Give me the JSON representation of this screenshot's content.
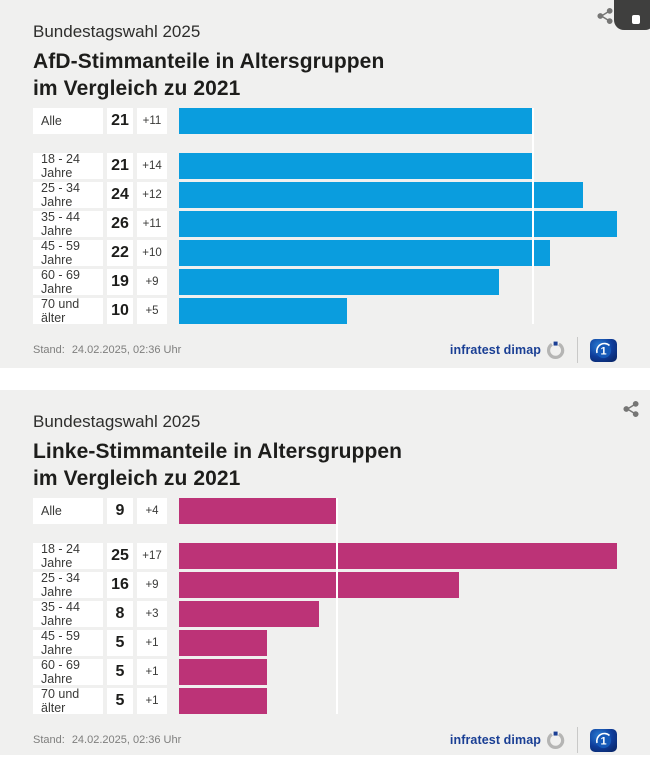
{
  "shared": {
    "stand_label": "Stand:",
    "stand_value": "24.02.2025, 02:36 Uhr",
    "source_label": "infratest dimap",
    "ard_logo_text": "1",
    "icons": {
      "share": "share-icon",
      "source_logo": "infratest-dimap-ring-icon",
      "broadcaster_logo": "ard-one-logo"
    }
  },
  "charts": [
    {
      "kicker": "Bundestagswahl 2025",
      "title_line1": "AfD-Stimmanteile in Altersgruppen",
      "title_line2": "im Vergleich zu 2021",
      "bar_color": "#0a9dde",
      "axis_max": 26,
      "reference_value": 21,
      "rows": [
        {
          "label": "Alle",
          "value": "21",
          "value_num": 21,
          "change": "+11"
        },
        {
          "label": "18 - 24 Jahre",
          "value": "21",
          "value_num": 21,
          "change": "+14"
        },
        {
          "label": "25 - 34 Jahre",
          "value": "24",
          "value_num": 24,
          "change": "+12"
        },
        {
          "label": "35 - 44 Jahre",
          "value": "26",
          "value_num": 26,
          "change": "+11"
        },
        {
          "label": "45 - 59 Jahre",
          "value": "22",
          "value_num": 22,
          "change": "+10"
        },
        {
          "label": "60 - 69 Jahre",
          "value": "19",
          "value_num": 19,
          "change": "+9"
        },
        {
          "label": "70 und älter",
          "value": "10",
          "value_num": 10,
          "change": "+5"
        }
      ]
    },
    {
      "kicker": "Bundestagswahl 2025",
      "title_line1": "Linke-Stimmanteile in Altersgruppen",
      "title_line2": "im Vergleich zu 2021",
      "bar_color": "#bc3377",
      "axis_max": 25,
      "reference_value": 9,
      "rows": [
        {
          "label": "Alle",
          "value": "9",
          "value_num": 9,
          "change": "+4"
        },
        {
          "label": "18 - 24 Jahre",
          "value": "25",
          "value_num": 25,
          "change": "+17"
        },
        {
          "label": "25 - 34 Jahre",
          "value": "16",
          "value_num": 16,
          "change": "+9"
        },
        {
          "label": "35 - 44 Jahre",
          "value": "8",
          "value_num": 8,
          "change": "+3"
        },
        {
          "label": "45 - 59 Jahre",
          "value": "5",
          "value_num": 5,
          "change": "+1"
        },
        {
          "label": "60 - 69 Jahre",
          "value": "5",
          "value_num": 5,
          "change": "+1"
        },
        {
          "label": "70 und älter",
          "value": "5",
          "value_num": 5,
          "change": "+1"
        }
      ]
    }
  ],
  "chart_data": [
    {
      "type": "bar",
      "orientation": "horizontal",
      "subtitle": "Bundestagswahl 2025",
      "title": "AfD-Stimmanteile in Altersgruppen im Vergleich zu 2021",
      "categories": [
        "Alle",
        "18 - 24 Jahre",
        "25 - 34 Jahre",
        "35 - 44 Jahre",
        "45 - 59 Jahre",
        "60 - 69 Jahre",
        "70 und älter"
      ],
      "values": [
        21,
        21,
        24,
        26,
        22,
        19,
        10
      ],
      "change_vs_2021": [
        11,
        14,
        12,
        11,
        10,
        9,
        5
      ],
      "unit": "percent",
      "xlim": [
        0,
        26
      ],
      "bar_color": "#0a9dde",
      "reference_line": {
        "value": 21,
        "meaning": "Gesamtwert Alle"
      },
      "grid": false,
      "legend": false,
      "stand": "24.02.2025, 02:36 Uhr",
      "source": "infratest dimap"
    },
    {
      "type": "bar",
      "orientation": "horizontal",
      "subtitle": "Bundestagswahl 2025",
      "title": "Linke-Stimmanteile in Altersgruppen im Vergleich zu 2021",
      "categories": [
        "Alle",
        "18 - 24 Jahre",
        "25 - 34 Jahre",
        "35 - 44 Jahre",
        "45 - 59 Jahre",
        "60 - 69 Jahre",
        "70 und älter"
      ],
      "values": [
        9,
        25,
        16,
        8,
        5,
        5,
        5
      ],
      "change_vs_2021": [
        4,
        17,
        9,
        3,
        1,
        1,
        1
      ],
      "unit": "percent",
      "xlim": [
        0,
        25
      ],
      "bar_color": "#bc3377",
      "reference_line": {
        "value": 9,
        "meaning": "Gesamtwert Alle"
      },
      "grid": false,
      "legend": false,
      "stand": "24.02.2025, 02:36 Uhr",
      "source": "infratest dimap"
    }
  ]
}
